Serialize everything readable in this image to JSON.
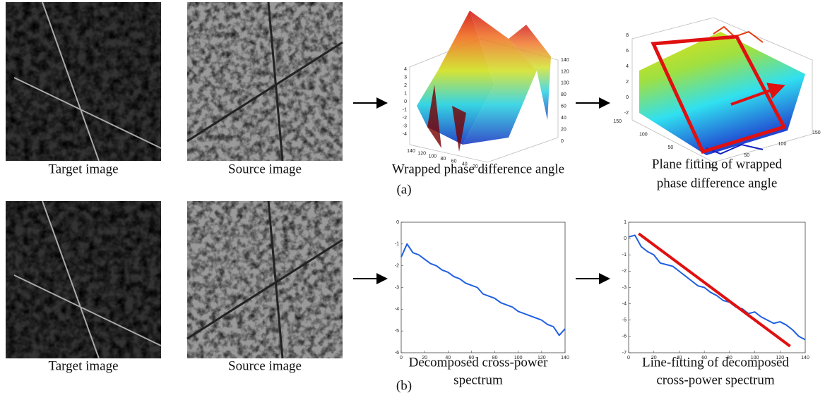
{
  "row_a": {
    "images": [
      {
        "caption": "Target image"
      },
      {
        "caption": "Source image"
      }
    ],
    "surface": {
      "caption": "Wrapped phase difference angle",
      "zticks": [
        4,
        3,
        2,
        1,
        0,
        -1,
        -2,
        -3,
        -4
      ],
      "xticks": [
        140,
        120,
        100,
        80,
        60,
        40,
        20,
        0
      ],
      "yticks": [
        140,
        120,
        100,
        80,
        60,
        40,
        20,
        0
      ]
    },
    "plane": {
      "caption_lines": [
        "Plane fitting of wrapped",
        "phase difference angle"
      ],
      "zticks": [
        8,
        6,
        4,
        2,
        0,
        -2
      ],
      "xticks": [
        0,
        50,
        100,
        150
      ],
      "yticks": [
        150,
        100,
        50,
        0
      ]
    },
    "label": "(a)"
  },
  "row_b": {
    "images": [
      {
        "caption": "Target image"
      },
      {
        "caption": "Source image"
      }
    ],
    "line_charts": [
      {
        "caption_lines": [
          "Decomposed cross-power",
          "spectrum"
        ],
        "x": [
          0,
          5,
          10,
          15,
          20,
          25,
          30,
          35,
          40,
          45,
          50,
          55,
          60,
          65,
          70,
          75,
          80,
          85,
          90,
          95,
          100,
          105,
          110,
          115,
          120,
          125,
          130,
          135,
          140
        ],
        "values": [
          -1.6,
          -1.0,
          -1.4,
          -1.5,
          -1.7,
          -1.9,
          -2.0,
          -2.2,
          -2.3,
          -2.5,
          -2.6,
          -2.8,
          -2.9,
          -3.0,
          -3.3,
          -3.4,
          -3.5,
          -3.7,
          -3.8,
          -3.9,
          -4.1,
          -4.2,
          -4.3,
          -4.4,
          -4.5,
          -4.7,
          -4.8,
          -5.2,
          -4.9
        ],
        "color": "#1f5fe0",
        "xlim": [
          0,
          140
        ],
        "ylim": [
          -6,
          0
        ],
        "xticks": [
          0,
          20,
          40,
          60,
          80,
          100,
          120,
          140
        ],
        "yticks": [
          0,
          -1,
          -2,
          -3,
          -4,
          -5,
          -6
        ]
      },
      {
        "caption_lines": [
          "Line-fitting of decomposed",
          "cross-power spectrum"
        ],
        "x": [
          0,
          5,
          10,
          15,
          20,
          25,
          30,
          35,
          40,
          45,
          50,
          55,
          60,
          65,
          70,
          75,
          80,
          85,
          90,
          95,
          100,
          105,
          110,
          115,
          120,
          125,
          130,
          135,
          140
        ],
        "values": [
          0.1,
          0.2,
          -0.5,
          -0.8,
          -1.0,
          -1.5,
          -1.6,
          -1.7,
          -2.0,
          -2.3,
          -2.6,
          -2.9,
          -3.0,
          -3.3,
          -3.5,
          -3.8,
          -3.9,
          -4.2,
          -4.3,
          -4.6,
          -4.5,
          -4.8,
          -5.0,
          -5.2,
          -5.1,
          -5.3,
          -5.6,
          -6.0,
          -6.2
        ],
        "color": "#1f5fe0",
        "fit": {
          "x": [
            8,
            128
          ],
          "values": [
            0.3,
            -6.6
          ],
          "color": "#e01010"
        },
        "xlim": [
          0,
          140
        ],
        "ylim": [
          -7,
          1
        ],
        "xticks": [
          0,
          20,
          40,
          60,
          80,
          100,
          120,
          140
        ],
        "yticks": [
          1,
          0,
          -1,
          -2,
          -3,
          -4,
          -5,
          -6,
          -7
        ]
      }
    ],
    "label": "(b)"
  }
}
